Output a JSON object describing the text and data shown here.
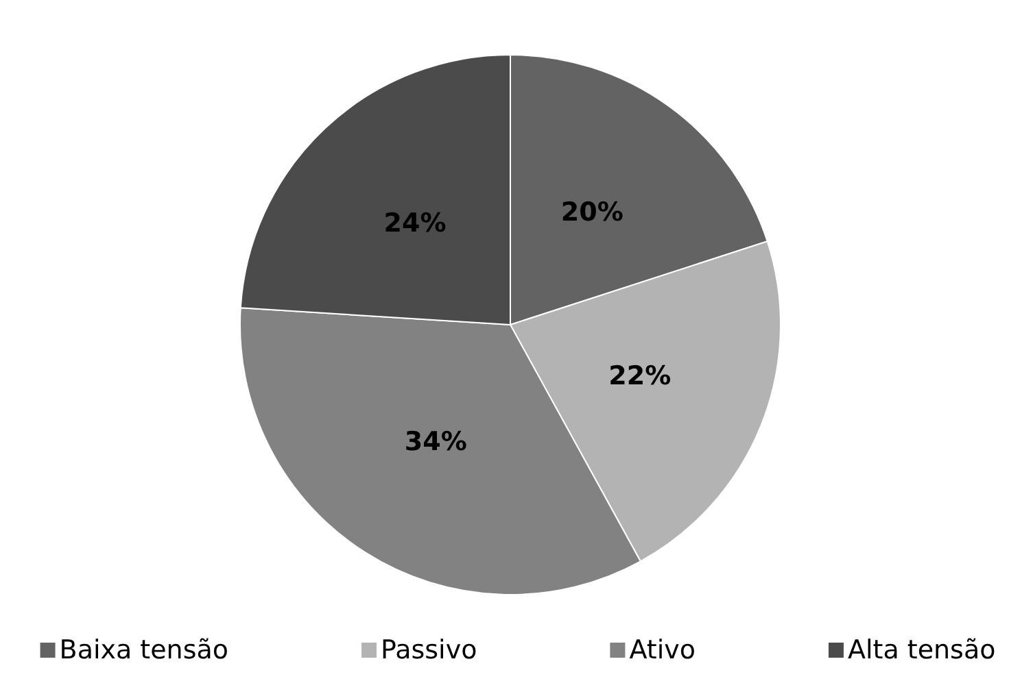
{
  "chart_data": {
    "type": "pie",
    "categories": [
      "Baixa tensão",
      "Passivo",
      "Ativo",
      "Alta tensão"
    ],
    "values": [
      20,
      22,
      34,
      24
    ],
    "colors": [
      "#636363",
      "#b3b3b3",
      "#828282",
      "#4b4b4b"
    ],
    "value_labels": [
      "20%",
      "22%",
      "34%",
      "24%"
    ],
    "legend": "bottom"
  }
}
